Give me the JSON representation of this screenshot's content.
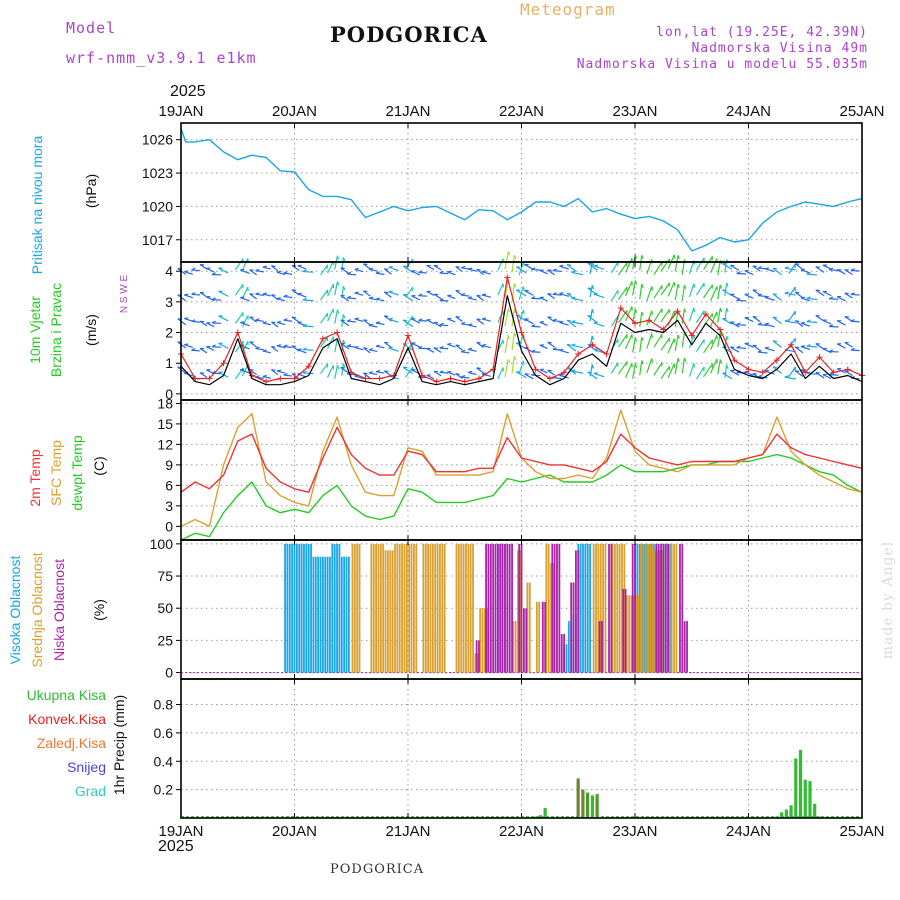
{
  "header": {
    "model_label": "Model",
    "model_name": "wrf-nmm_v3.9.1 e1km",
    "title": "PODGORICA",
    "subtitle": "Meteogram",
    "coords": "lon,lat (19.25E, 42.39N)",
    "elevation": "Nadmorska Visina 49m",
    "model_elevation": "Nadmorska Visina u modelu 55.035m",
    "year_top": "2025",
    "year_bottom": "2025",
    "footer_title": "PODGORICA",
    "watermark": "made by Angel"
  },
  "colors": {
    "pressure": "#1aa5e6",
    "wind_speed": "#000000",
    "gust": "#e82020",
    "temp2m": "#ee3333",
    "sfc_temp": "#d9a030",
    "dewpt": "#22cc22",
    "cloud_high": "#1aa5e6",
    "cloud_mid": "#d9a030",
    "cloud_low": "#aa22aa",
    "precip_total": "#33bb33",
    "precip_conv": "#e82020",
    "precip_strat": "#ee7733",
    "snow": "#4444dd",
    "hail": "#33ccbb"
  },
  "chart_data": {
    "type": "meteogram",
    "x_ticks": [
      "19JAN",
      "20JAN",
      "21JAN",
      "22JAN",
      "23JAN",
      "24JAN",
      "25JAN"
    ],
    "x_range_hours": [
      0,
      144
    ],
    "panels": [
      {
        "id": "pressure",
        "labels": [
          "Pritisak na nivou mora"
        ],
        "unit": "(hPa)",
        "ylim": [
          1015,
          1027.5
        ],
        "yticks": [
          1017,
          1020,
          1023,
          1026
        ],
        "hours": [
          0,
          1,
          3,
          6,
          9,
          12,
          15,
          18,
          21,
          24,
          27,
          30,
          33,
          36,
          39,
          42,
          45,
          48,
          51,
          54,
          57,
          60,
          63,
          66,
          69,
          72,
          75,
          78,
          81,
          84,
          87,
          90,
          93,
          96,
          99,
          102,
          105,
          108,
          111,
          114,
          117,
          120,
          123,
          126,
          129,
          132,
          135,
          138,
          141,
          144
        ],
        "values": [
          1027.0,
          1025.8,
          1025.8,
          1026.0,
          1024.9,
          1024.2,
          1024.6,
          1024.4,
          1023.2,
          1023.1,
          1021.5,
          1020.9,
          1020.9,
          1020.6,
          1019.0,
          1019.5,
          1020.0,
          1019.6,
          1019.9,
          1020.0,
          1019.4,
          1018.8,
          1019.7,
          1019.6,
          1018.8,
          1019.5,
          1020.4,
          1020.4,
          1020.0,
          1020.7,
          1019.5,
          1019.8,
          1019.3,
          1018.9,
          1019.1,
          1018.7,
          1017.9,
          1016.0,
          1016.5,
          1017.2,
          1016.8,
          1017.0,
          1018.5,
          1019.5,
          1020.0,
          1020.4,
          1020.2,
          1020.0,
          1020.4,
          1020.7
        ]
      },
      {
        "id": "wind",
        "labels": [
          "10m Vjetar",
          "Brzina i Pravac"
        ],
        "unit": "(m/s)",
        "compass": "N S W E",
        "ylim": [
          -0.2,
          4.3
        ],
        "yticks": [
          0,
          1,
          2,
          3,
          4
        ],
        "hours": [
          0,
          3,
          6,
          9,
          12,
          15,
          18,
          21,
          24,
          27,
          30,
          33,
          36,
          39,
          42,
          45,
          48,
          51,
          54,
          57,
          60,
          63,
          66,
          69,
          72,
          75,
          78,
          81,
          84,
          87,
          90,
          93,
          96,
          99,
          102,
          105,
          108,
          111,
          114,
          117,
          120,
          123,
          126,
          129,
          132,
          135,
          138,
          141,
          144
        ],
        "speed": [
          0.9,
          0.4,
          0.3,
          0.6,
          1.8,
          0.5,
          0.3,
          0.3,
          0.4,
          0.6,
          1.5,
          1.8,
          0.5,
          0.4,
          0.3,
          0.5,
          1.5,
          0.4,
          0.3,
          0.4,
          0.3,
          0.4,
          0.5,
          3.2,
          1.4,
          0.6,
          0.3,
          0.5,
          1.1,
          1.3,
          0.9,
          2.3,
          2.0,
          2.1,
          2.0,
          2.4,
          1.6,
          2.3,
          1.9,
          0.8,
          0.6,
          0.5,
          0.8,
          1.3,
          0.5,
          0.9,
          0.5,
          0.6,
          0.4
        ],
        "gust": [
          1.3,
          0.5,
          0.5,
          1.0,
          2.0,
          0.6,
          0.4,
          0.5,
          0.5,
          0.9,
          1.8,
          2.0,
          0.7,
          0.5,
          0.5,
          0.6,
          1.9,
          0.6,
          0.4,
          0.5,
          0.4,
          0.5,
          0.8,
          3.8,
          2.0,
          0.8,
          0.5,
          0.7,
          1.3,
          1.6,
          1.3,
          2.8,
          2.3,
          2.4,
          2.1,
          2.7,
          1.9,
          2.6,
          2.1,
          1.1,
          0.8,
          0.7,
          1.1,
          1.6,
          0.7,
          1.2,
          0.7,
          0.8,
          0.6
        ]
      },
      {
        "id": "temperature",
        "labels": [
          "2m Temp",
          "SFC Temp",
          "dewpt Temp"
        ],
        "unit": "(C)",
        "ylim": [
          -2,
          18.5
        ],
        "yticks": [
          0,
          3,
          6,
          9,
          12,
          15,
          18
        ],
        "hours": [
          0,
          3,
          6,
          9,
          12,
          15,
          18,
          21,
          24,
          27,
          30,
          33,
          36,
          39,
          42,
          45,
          48,
          51,
          54,
          57,
          60,
          63,
          66,
          69,
          72,
          75,
          78,
          81,
          84,
          87,
          90,
          93,
          96,
          99,
          102,
          105,
          108,
          111,
          114,
          117,
          120,
          123,
          126,
          129,
          132,
          135,
          138,
          141,
          144
        ],
        "t2m": [
          5.0,
          6.5,
          5.5,
          7.5,
          12.5,
          13.5,
          8.5,
          6.5,
          5.5,
          5.0,
          10.0,
          14.5,
          10.5,
          8.5,
          7.5,
          7.5,
          11.0,
          10.5,
          8.0,
          8.0,
          8.0,
          8.5,
          8.5,
          13.0,
          10.0,
          9.5,
          9.0,
          9.0,
          8.5,
          8.0,
          9.5,
          13.5,
          11.5,
          10.0,
          9.5,
          9.0,
          9.5,
          9.5,
          9.5,
          9.5,
          10.0,
          10.5,
          13.5,
          11.5,
          10.5,
          10.0,
          9.5,
          9.0,
          8.5
        ],
        "sfc": [
          0.0,
          1.0,
          0.0,
          9.0,
          14.5,
          16.5,
          6.5,
          4.5,
          3.5,
          3.0,
          11.0,
          16.0,
          9.0,
          5.0,
          4.5,
          4.5,
          11.5,
          11.0,
          7.5,
          7.5,
          7.5,
          7.5,
          8.0,
          16.5,
          10.0,
          8.0,
          7.0,
          7.0,
          7.5,
          7.0,
          10.0,
          17.0,
          11.0,
          9.0,
          8.5,
          8.0,
          9.0,
          9.0,
          9.0,
          9.0,
          10.0,
          10.5,
          16.0,
          11.0,
          9.0,
          7.5,
          6.5,
          5.5,
          5.0
        ],
        "dewpt": [
          -2.0,
          -1.0,
          -1.5,
          2.0,
          4.5,
          6.5,
          3.0,
          2.0,
          2.5,
          2.0,
          4.5,
          6.0,
          3.0,
          1.5,
          1.0,
          1.5,
          5.5,
          5.0,
          3.5,
          3.5,
          3.5,
          4.0,
          4.5,
          7.0,
          6.5,
          7.0,
          7.5,
          6.5,
          6.5,
          6.5,
          7.5,
          9.0,
          8.0,
          8.0,
          8.0,
          8.5,
          9.0,
          9.0,
          9.5,
          9.5,
          9.5,
          10.0,
          10.5,
          10.0,
          9.0,
          8.0,
          7.5,
          6.0,
          5.0
        ]
      },
      {
        "id": "clouds",
        "labels": [
          "Visoka Oblacnost",
          "Srednja Oblacnost",
          "Niska Oblacnost"
        ],
        "unit": "(%)",
        "ylim": [
          -5,
          103
        ],
        "yticks": [
          0,
          25,
          50,
          75,
          100
        ],
        "high": [
          [
            22,
            28,
            100
          ],
          [
            28,
            32,
            90
          ],
          [
            32,
            34,
            100
          ],
          [
            34,
            36,
            90
          ],
          [
            67,
            69,
            100
          ],
          [
            81,
            82,
            22
          ],
          [
            82,
            83,
            40
          ],
          [
            83,
            84,
            45
          ],
          [
            84,
            87,
            100
          ],
          [
            96,
            101,
            100
          ],
          [
            102,
            104,
            100
          ]
        ],
        "mid": [
          [
            36,
            38,
            100
          ],
          [
            40,
            43,
            100
          ],
          [
            43,
            45,
            95
          ],
          [
            45,
            50,
            100
          ],
          [
            51,
            56,
            100
          ],
          [
            58,
            62,
            100
          ],
          [
            62,
            63,
            15
          ],
          [
            63,
            65,
            50
          ],
          [
            70,
            71,
            40
          ],
          [
            71,
            72,
            95
          ],
          [
            73,
            74,
            70
          ],
          [
            75,
            76,
            55
          ],
          [
            77,
            78,
            100
          ],
          [
            78,
            79,
            85
          ],
          [
            87,
            90,
            100
          ],
          [
            91,
            94,
            100
          ],
          [
            94,
            97,
            60
          ],
          [
            97,
            100,
            100
          ],
          [
            100,
            102,
            95
          ],
          [
            103,
            105,
            100
          ]
        ],
        "low": [
          [
            62,
            63,
            25
          ],
          [
            64,
            70,
            100
          ],
          [
            71,
            72,
            100
          ],
          [
            72,
            73,
            50
          ],
          [
            76,
            77,
            55
          ],
          [
            78,
            80,
            100
          ],
          [
            80,
            81,
            30
          ],
          [
            82,
            83,
            70
          ],
          [
            83,
            84,
            95
          ],
          [
            88,
            89,
            40
          ],
          [
            90,
            91,
            100
          ],
          [
            93,
            94,
            65
          ],
          [
            95,
            96,
            100
          ],
          [
            100,
            103,
            100
          ],
          [
            105,
            106,
            100
          ],
          [
            106,
            107,
            40
          ]
        ]
      },
      {
        "id": "precip",
        "labels": [
          "Ukupna Kisa",
          "Konvek.Kisa",
          "Zaledj.Kisa",
          "Snijeg",
          "Grad"
        ],
        "unit": "1hr Precip (mm)",
        "ylim": [
          0,
          0.98
        ],
        "yticks": [
          0.2,
          0.4,
          0.6,
          0.8
        ],
        "total": [
          [
            75,
            0.01
          ],
          [
            76,
            0.02
          ],
          [
            77,
            0.07
          ],
          [
            84,
            0.28
          ],
          [
            85,
            0.2
          ],
          [
            86,
            0.18
          ],
          [
            87,
            0.16
          ],
          [
            88,
            0.17
          ],
          [
            126,
            0.01
          ],
          [
            127,
            0.04
          ],
          [
            128,
            0.06
          ],
          [
            129,
            0.09
          ],
          [
            130,
            0.42
          ],
          [
            131,
            0.48
          ],
          [
            132,
            0.27
          ],
          [
            133,
            0.26
          ],
          [
            134,
            0.1
          ],
          [
            135,
            0.01
          ]
        ],
        "stratiform": [
          [
            84,
            0.27
          ],
          [
            85,
            0.2
          ],
          [
            86,
            0.17
          ],
          [
            88,
            0.16
          ]
        ]
      }
    ]
  }
}
